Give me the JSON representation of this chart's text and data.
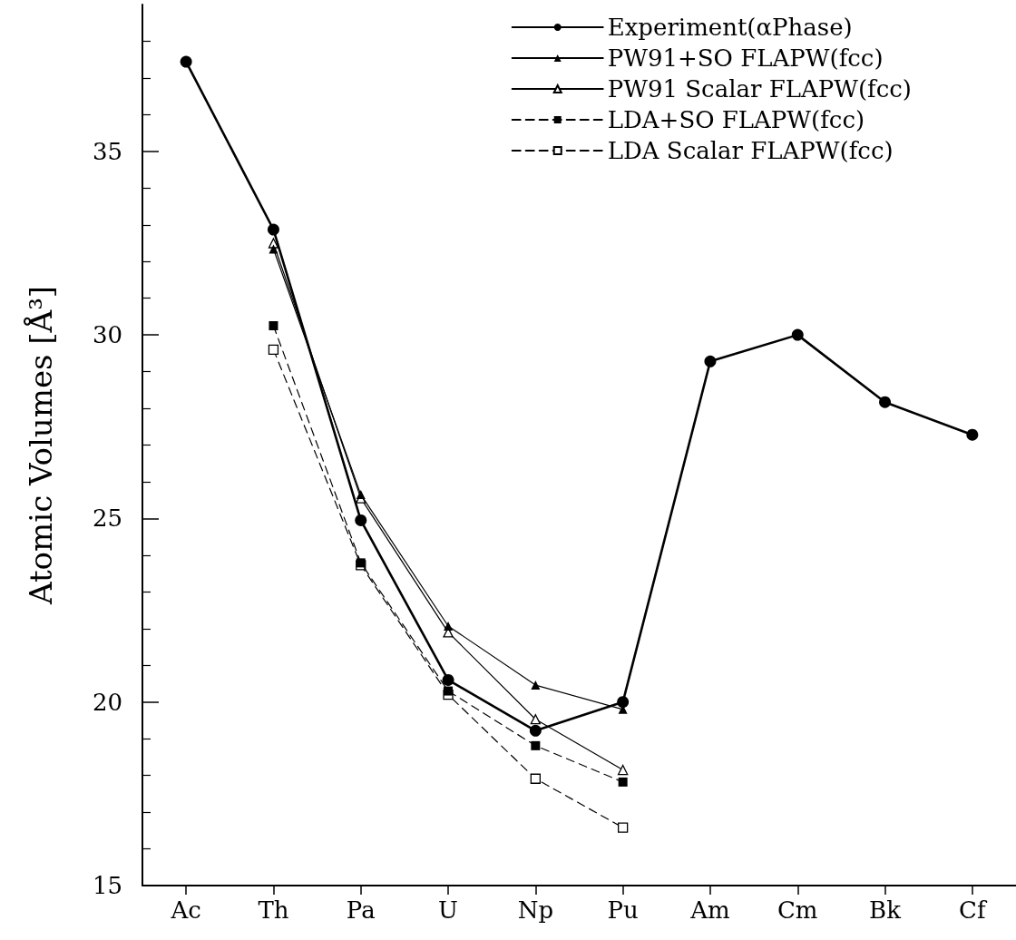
{
  "chart_data": {
    "type": "line",
    "ylabel": "Atomic Volumes [Å³]",
    "categories": [
      "Ac",
      "Th",
      "Pa",
      "U",
      "Np",
      "Pu",
      "Am",
      "Cm",
      "Bk",
      "Cf"
    ],
    "series": [
      {
        "name": "Experiment(αPhase)",
        "color": "#000000",
        "marker": "circle",
        "line_style": "solid",
        "values": [
          37.44,
          32.87,
          24.95,
          20.6,
          19.22,
          20.0,
          29.28,
          30.0,
          28.17,
          27.28
        ]
      },
      {
        "name": "PW91+SO FLAPW(fcc)",
        "color": "#000000",
        "marker": "triangle",
        "line_style": "solid",
        "values": [
          null,
          32.34,
          25.65,
          22.07,
          20.46,
          19.8,
          null,
          null,
          null,
          null
        ]
      },
      {
        "name": "PW91 Scalar FLAPW(fcc)",
        "color": "#000000",
        "marker": "triangle",
        "line_style": "solid",
        "values": [
          null,
          32.5,
          25.55,
          21.9,
          19.53,
          18.15,
          null,
          null,
          null,
          null
        ]
      },
      {
        "name": "LDA+SO FLAPW(fcc)",
        "color": "#000000",
        "marker": "square",
        "line_style": "dashed",
        "values": [
          null,
          30.25,
          23.79,
          20.3,
          18.81,
          17.82,
          null,
          null,
          null,
          null
        ]
      },
      {
        "name": "LDA Scalar FLAPW(fcc)",
        "color": "#000000",
        "marker": "square",
        "line_style": "dashed",
        "values": [
          null,
          29.6,
          23.73,
          20.2,
          17.91,
          16.58,
          null,
          null,
          null,
          null
        ]
      }
    ],
    "ylim": [
      15,
      39
    ],
    "yticks": [
      15,
      20,
      25,
      30,
      35
    ],
    "grid": false,
    "legend": "top right"
  }
}
